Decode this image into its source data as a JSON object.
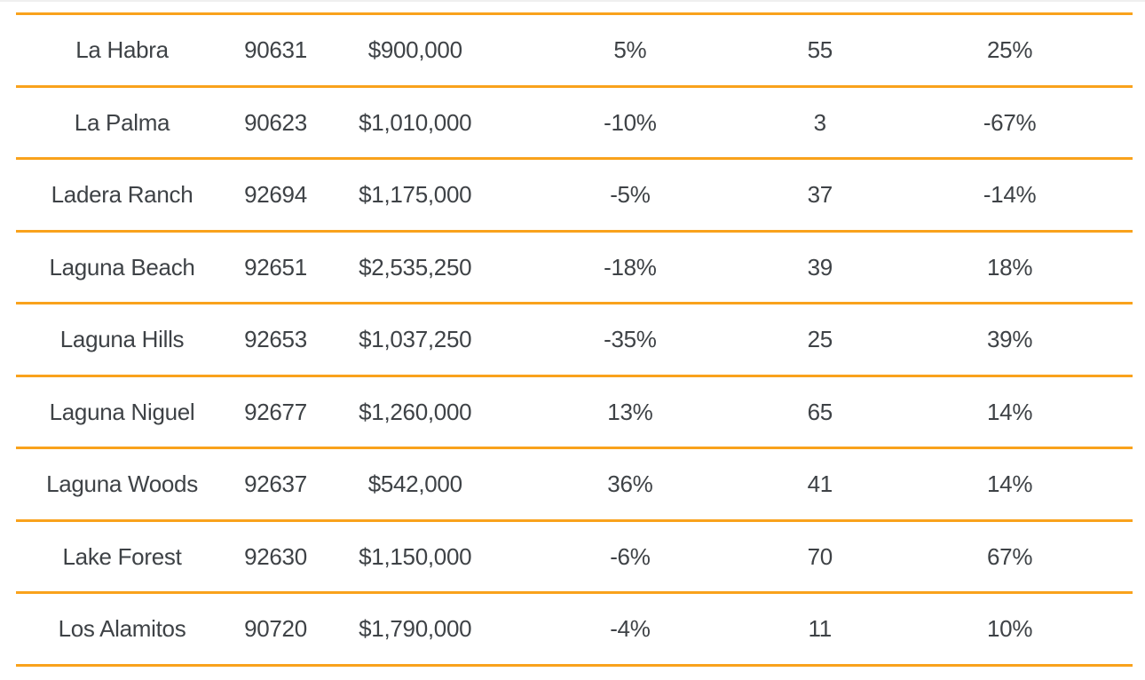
{
  "colors": {
    "accent_divider": "#F9A21C",
    "text": "#3E4246",
    "top_hairline": "#EFEFEF",
    "background": "#FFFFFF"
  },
  "chart_data": {
    "type": "table",
    "rows": [
      [
        "La Habra",
        "90631",
        "$900,000",
        "5%",
        "55",
        "25%"
      ],
      [
        "La Palma",
        "90623",
        "$1,010,000",
        "-10%",
        "3",
        "-67%"
      ],
      [
        "Ladera Ranch",
        "92694",
        "$1,175,000",
        "-5%",
        "37",
        "-14%"
      ],
      [
        "Laguna Beach",
        "92651",
        "$2,535,250",
        "-18%",
        "39",
        "18%"
      ],
      [
        "Laguna Hills",
        "92653",
        "$1,037,250",
        "-35%",
        "25",
        "39%"
      ],
      [
        "Laguna Niguel",
        "92677",
        "$1,260,000",
        "13%",
        "65",
        "14%"
      ],
      [
        "Laguna Woods",
        "92637",
        "$542,000",
        "36%",
        "41",
        "14%"
      ],
      [
        "Lake Forest",
        "92630",
        "$1,150,000",
        "-6%",
        "70",
        "67%"
      ],
      [
        "Los Alamitos",
        "90720",
        "$1,790,000",
        "-4%",
        "11",
        "10%"
      ]
    ]
  }
}
